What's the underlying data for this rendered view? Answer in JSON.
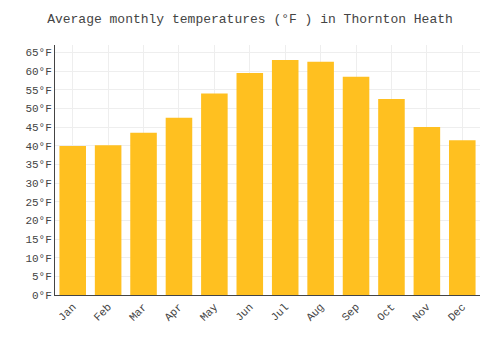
{
  "chart_data": {
    "type": "bar",
    "title": "Average monthly temperatures (°F ) in Thornton Heath",
    "categories": [
      "Jan",
      "Feb",
      "Mar",
      "Apr",
      "May",
      "Jun",
      "Jul",
      "Aug",
      "Sep",
      "Oct",
      "Nov",
      "Dec"
    ],
    "values": [
      39.9,
      40.1,
      43.5,
      47.5,
      54.0,
      59.5,
      63.0,
      62.5,
      58.5,
      52.5,
      45.0,
      41.5
    ],
    "color": "#FFC020",
    "ylim": [
      0,
      67
    ],
    "yticks": [
      {
        "value": 0,
        "label": "0°F"
      },
      {
        "value": 5,
        "label": "5°F"
      },
      {
        "value": 10,
        "label": "10°F"
      },
      {
        "value": 15,
        "label": "15°F"
      },
      {
        "value": 20,
        "label": "20°F"
      },
      {
        "value": 25,
        "label": "25°F"
      },
      {
        "value": 30,
        "label": "30°F"
      },
      {
        "value": 35,
        "label": "35°F"
      },
      {
        "value": 40,
        "label": "40°F"
      },
      {
        "value": 45,
        "label": "45°F"
      },
      {
        "value": 50,
        "label": "50°F"
      },
      {
        "value": 55,
        "label": "55°F"
      },
      {
        "value": 60,
        "label": "60°F"
      },
      {
        "value": 65,
        "label": "65°F"
      }
    ],
    "grid": true
  }
}
